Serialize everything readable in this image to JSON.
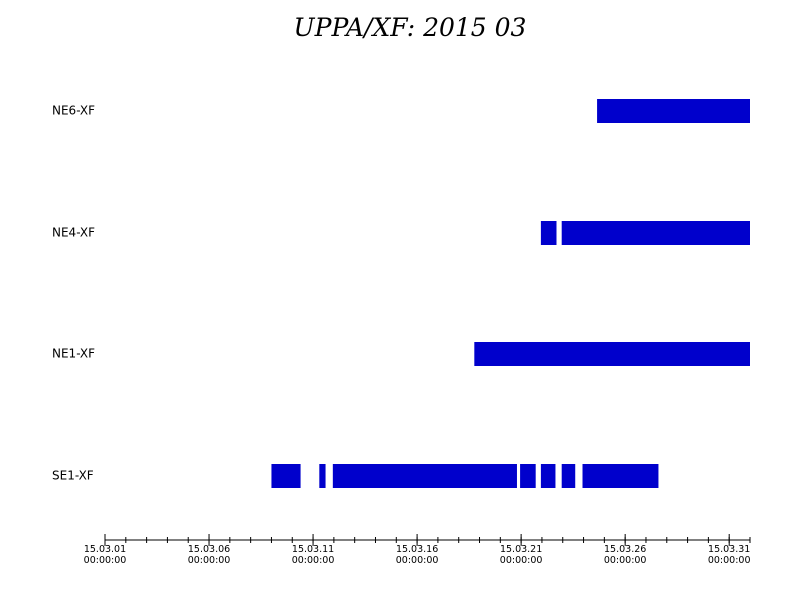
{
  "chart_data": {
    "type": "timeline",
    "title": "UPPA/XF: 2015 03",
    "xlim": [
      0,
      31
    ],
    "xticks": [
      {
        "value": 0,
        "label": "15.03.01 00:00:00"
      },
      {
        "value": 5,
        "label": "15.03.06 00:00:00"
      },
      {
        "value": 10,
        "label": "15.03.11 00:00:00"
      },
      {
        "value": 15,
        "label": "15.03.16 00:00:00"
      },
      {
        "value": 20,
        "label": "15.03.21 00:00:00"
      },
      {
        "value": 25,
        "label": "15.03.26 00:00:00"
      },
      {
        "value": 30,
        "label": "15.03.31 00:00:00"
      }
    ],
    "xminor_step": 1,
    "series": [
      {
        "name": "NE6-XF",
        "color": "#0000cc",
        "ranges": [
          [
            23.65,
            31
          ]
        ]
      },
      {
        "name": "NE4-XF",
        "color": "#0000cc",
        "ranges": [
          [
            20.95,
            21.7
          ],
          [
            21.95,
            31
          ]
        ]
      },
      {
        "name": "NE1-XF",
        "color": "#0000cc",
        "ranges": [
          [
            17.75,
            31
          ]
        ]
      },
      {
        "name": "SE1-XF",
        "color": "#0000cc",
        "ranges": [
          [
            8.0,
            9.4
          ],
          [
            10.3,
            10.6
          ],
          [
            10.95,
            19.8
          ],
          [
            19.95,
            20.7
          ],
          [
            20.95,
            21.65
          ],
          [
            21.95,
            22.6
          ],
          [
            22.95,
            26.6
          ]
        ]
      }
    ]
  }
}
